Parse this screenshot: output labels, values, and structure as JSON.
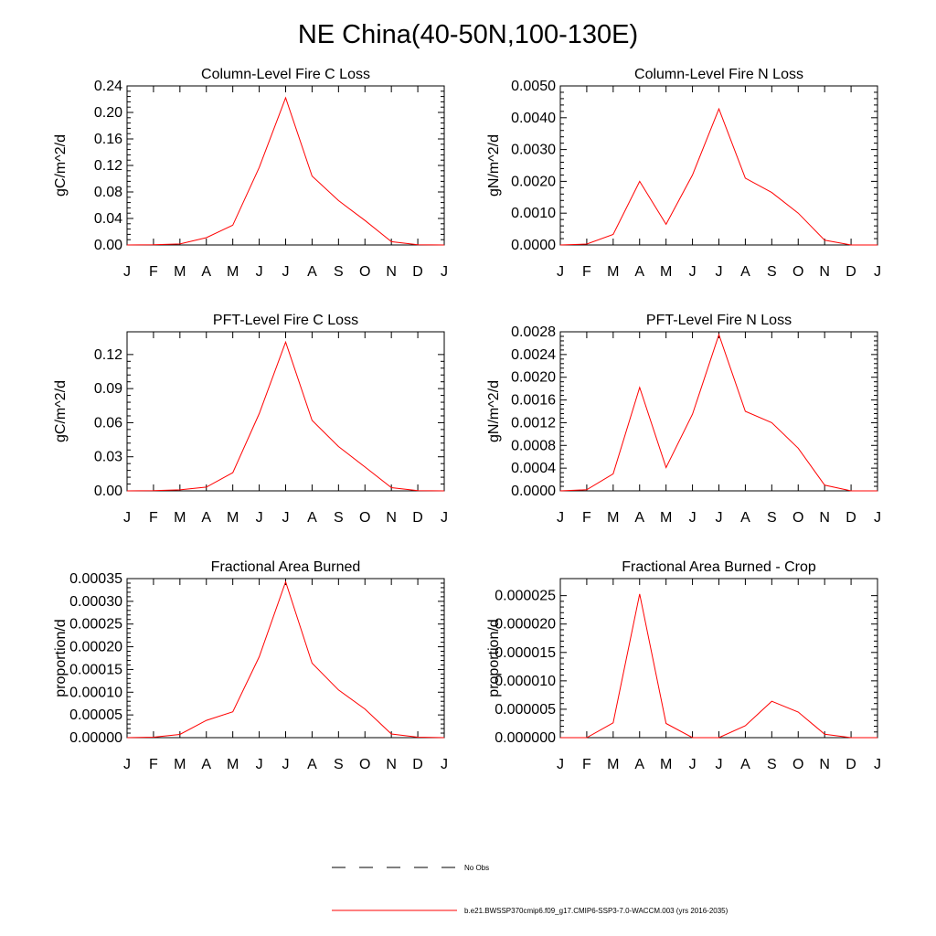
{
  "figure_title": "NE China(40-50N,100-130E)",
  "x_ticks": [
    "J",
    "F",
    "M",
    "A",
    "M",
    "J",
    "J",
    "A",
    "S",
    "O",
    "N",
    "D",
    "J"
  ],
  "legend": [
    {
      "label": "No Obs",
      "style": "dashed",
      "color": "#000000"
    },
    {
      "label": "b.e21.BWSSP370cmip6.f09_g17.CMIP6-SSP3-7.0-WACCM.003 (yrs 2016-2035)",
      "style": "solid",
      "color": "#ff0000"
    }
  ],
  "chart_data": [
    {
      "type": "line",
      "title": "Column-Level Fire C Loss",
      "ylabel": "gC/m^2/d",
      "ylim": [
        0,
        0.24
      ],
      "yticks": [
        "0.00",
        "0.04",
        "0.08",
        "0.12",
        "0.16",
        "0.20",
        "0.24"
      ],
      "categories": [
        "J",
        "F",
        "M",
        "A",
        "M",
        "J",
        "J",
        "A",
        "S",
        "O",
        "N",
        "D",
        "J"
      ],
      "series": [
        {
          "color": "#ff0000",
          "values": [
            0.0,
            0.0003,
            0.0015,
            0.011,
            0.03,
            0.117,
            0.222,
            0.104,
            0.067,
            0.037,
            0.005,
            0.0003,
            0.0
          ]
        }
      ]
    },
    {
      "type": "line",
      "title": "Column-Level Fire N Loss",
      "ylabel": "gN/m^2/d",
      "ylim": [
        0,
        0.005
      ],
      "yticks": [
        "0.0000",
        "0.0010",
        "0.0020",
        "0.0030",
        "0.0040",
        "0.0050"
      ],
      "categories": [
        "J",
        "F",
        "M",
        "A",
        "M",
        "J",
        "J",
        "A",
        "S",
        "O",
        "N",
        "D",
        "J"
      ],
      "series": [
        {
          "color": "#ff0000",
          "values": [
            0.0,
            3e-05,
            0.00033,
            0.002,
            0.00065,
            0.0022,
            0.00428,
            0.0021,
            0.00165,
            0.001,
            0.00015,
            0.0,
            0.0
          ]
        }
      ]
    },
    {
      "type": "line",
      "title": "PFT-Level Fire C Loss",
      "ylabel": "gC/m^2/d",
      "ylim": [
        0,
        0.14
      ],
      "yticks": [
        "0.00",
        "0.03",
        "0.06",
        "0.09",
        "0.12"
      ],
      "categories": [
        "J",
        "F",
        "M",
        "A",
        "M",
        "J",
        "J",
        "A",
        "S",
        "O",
        "N",
        "D",
        "J"
      ],
      "series": [
        {
          "color": "#ff0000",
          "values": [
            0.0,
            0.0002,
            0.0009,
            0.0033,
            0.016,
            0.068,
            0.131,
            0.062,
            0.039,
            0.021,
            0.0028,
            0.0002,
            0.0
          ]
        }
      ]
    },
    {
      "type": "line",
      "title": "PFT-Level Fire N Loss",
      "ylabel": "gN/m^2/d",
      "ylim": [
        0,
        0.0028
      ],
      "yticks": [
        "0.0000",
        "0.0004",
        "0.0008",
        "0.0012",
        "0.0016",
        "0.0020",
        "0.0024",
        "0.0028"
      ],
      "categories": [
        "J",
        "F",
        "M",
        "A",
        "M",
        "J",
        "J",
        "A",
        "S",
        "O",
        "N",
        "D",
        "J"
      ],
      "series": [
        {
          "color": "#ff0000",
          "values": [
            0.0,
            2e-05,
            0.0003,
            0.00182,
            0.00041,
            0.00135,
            0.00275,
            0.0014,
            0.0012,
            0.00075,
            0.0001,
            0.0,
            0.0
          ]
        }
      ]
    },
    {
      "type": "line",
      "title": "Fractional Area Burned",
      "ylabel": "proportion/d",
      "ylim": [
        0,
        0.00035
      ],
      "yticks": [
        "0.00000",
        "0.00005",
        "0.00010",
        "0.00015",
        "0.00020",
        "0.00025",
        "0.00030",
        "0.00035"
      ],
      "categories": [
        "J",
        "F",
        "M",
        "A",
        "M",
        "J",
        "J",
        "A",
        "S",
        "O",
        "N",
        "D",
        "J"
      ],
      "series": [
        {
          "color": "#ff0000",
          "values": [
            0.0,
            1e-06,
            7e-06,
            3.8e-05,
            5.7e-05,
            0.000178,
            0.000343,
            0.000164,
            0.000105,
            6.3e-05,
            8e-06,
            1e-06,
            0.0
          ]
        }
      ]
    },
    {
      "type": "line",
      "title": "Fractional Area Burned - Crop",
      "ylabel": "proportion/d",
      "ylim": [
        0,
        2.8e-05
      ],
      "yticks": [
        "0.000000",
        "0.000005",
        "0.000010",
        "0.000015",
        "0.000020",
        "0.000025"
      ],
      "categories": [
        "J",
        "F",
        "M",
        "A",
        "M",
        "J",
        "J",
        "A",
        "S",
        "O",
        "N",
        "D",
        "J"
      ],
      "series": [
        {
          "color": "#ff0000",
          "values": [
            0.0,
            0.0,
            2.6e-06,
            2.53e-05,
            2.5e-06,
            0.0,
            0.0,
            2.1e-06,
            6.4e-06,
            4.5e-06,
            6e-07,
            0.0,
            0.0
          ]
        }
      ]
    }
  ]
}
